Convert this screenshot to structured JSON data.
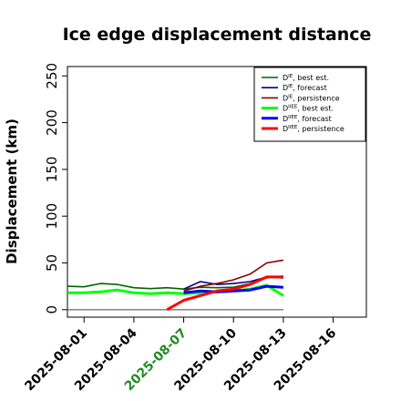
{
  "chart_data": {
    "type": "line",
    "title": "Ice edge displacement distance",
    "ylabel": "Displacement (km)",
    "xlabel": "",
    "xlim": [
      "2025-07-31",
      "2025-08-18"
    ],
    "ylim": [
      -8,
      260
    ],
    "yticks": [
      0,
      50,
      100,
      150,
      200,
      250
    ],
    "xticks": [
      {
        "label": "2025-08-01",
        "date": "2025-08-01",
        "color": "#000000"
      },
      {
        "label": "2025-08-04",
        "date": "2025-08-04",
        "color": "#000000"
      },
      {
        "label": "2025-08-07",
        "date": "2025-08-07",
        "color": "#228B22"
      },
      {
        "label": "2025-08-10",
        "date": "2025-08-10",
        "color": "#000000"
      },
      {
        "label": "2025-08-13",
        "date": "2025-08-13",
        "color": "#000000"
      },
      {
        "label": "2025-08-16",
        "date": "2025-08-16",
        "color": "#000000"
      }
    ],
    "legend_position": "top-right",
    "reference_line": {
      "y": 0,
      "x": [
        "2025-08-00",
        "2025-08-13"
      ],
      "color": "#777777"
    },
    "series": [
      {
        "name": "DIE, best est.",
        "sup": "IE",
        "suffix": ", best est.",
        "color": "#006400",
        "width": 1.6,
        "x": [
          "2025-07-31",
          "2025-08-01",
          "2025-08-02",
          "2025-08-03",
          "2025-08-04",
          "2025-08-05",
          "2025-08-06",
          "2025-08-07",
          "2025-08-08",
          "2025-08-09",
          "2025-08-10",
          "2025-08-11",
          "2025-08-12",
          "2025-08-13"
        ],
        "values": [
          25,
          24.5,
          28,
          27,
          23.5,
          22.5,
          23.5,
          22,
          24,
          23.5,
          24,
          28,
          34,
          36
        ]
      },
      {
        "name": "DIE, forecast",
        "sup": "IE",
        "suffix": ", forecast",
        "color": "#00008B",
        "width": 1.6,
        "x": [
          "2025-08-07",
          "2025-08-08",
          "2025-08-09",
          "2025-08-10",
          "2025-08-11",
          "2025-08-12",
          "2025-08-13"
        ],
        "values": [
          22,
          30,
          27,
          28,
          30,
          35,
          34
        ]
      },
      {
        "name": "DIE, persistence",
        "sup": "IE",
        "suffix": ", persistence",
        "color": "#8B0000",
        "width": 1.6,
        "x": [
          "2025-08-07",
          "2025-08-08",
          "2025-08-09",
          "2025-08-10",
          "2025-08-11",
          "2025-08-12",
          "2025-08-13"
        ],
        "values": [
          20,
          25,
          28,
          32,
          38,
          50,
          53
        ]
      },
      {
        "name": "DIIEE, best est.",
        "sup": "IIEE",
        "suffix": ", best est.",
        "color": "#00FF00",
        "width": 3,
        "x": [
          "2025-07-31",
          "2025-08-01",
          "2025-08-02",
          "2025-08-03",
          "2025-08-04",
          "2025-08-05",
          "2025-08-06",
          "2025-08-07",
          "2025-08-08",
          "2025-08-09",
          "2025-08-10",
          "2025-08-11",
          "2025-08-12",
          "2025-08-13"
        ],
        "values": [
          18,
          18,
          19,
          21,
          18,
          17,
          18,
          17,
          18,
          19,
          20,
          22,
          26,
          15
        ]
      },
      {
        "name": "DIIEE, forecast",
        "sup": "IIEE",
        "suffix": ", forecast",
        "color": "#0000FF",
        "width": 3,
        "x": [
          "2025-08-07",
          "2025-08-08",
          "2025-08-09",
          "2025-08-10",
          "2025-08-11",
          "2025-08-12",
          "2025-08-13"
        ],
        "values": [
          18,
          20,
          19,
          20,
          21,
          25,
          24
        ]
      },
      {
        "name": "DIIEE, persistence",
        "sup": "IIEE",
        "suffix": ", persistence",
        "color": "#FF0000",
        "width": 3,
        "x": [
          "2025-08-06",
          "2025-08-07",
          "2025-08-08",
          "2025-08-09",
          "2025-08-10",
          "2025-08-11",
          "2025-08-12",
          "2025-08-13"
        ],
        "values": [
          0,
          10,
          15,
          20,
          22,
          27,
          35,
          35
        ]
      }
    ]
  }
}
